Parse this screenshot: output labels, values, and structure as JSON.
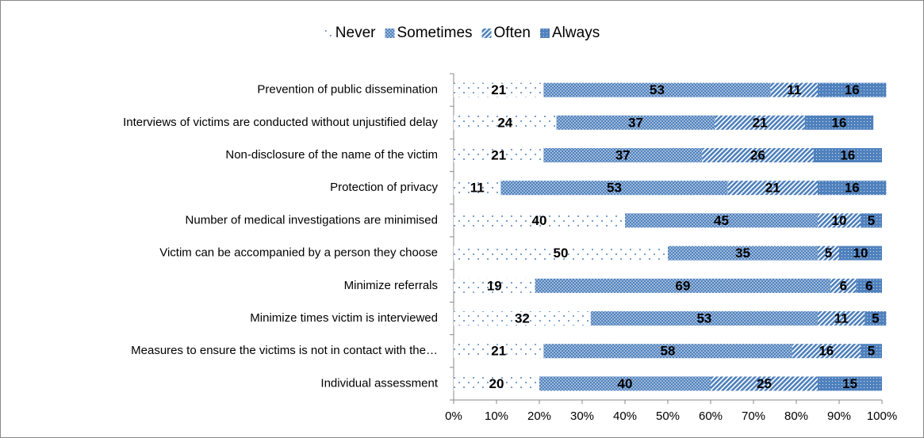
{
  "chart_data": {
    "type": "bar",
    "orientation": "horizontal",
    "stacked": true,
    "categories": [
      "Prevention of public dissemination",
      "Interviews of victims are conducted without unjustified delay",
      "Non-disclosure of the name of the victim",
      "Protection of privacy",
      "Number of medical investigations are minimised",
      "Victim can be accompanied by a person they choose",
      "Minimize referrals",
      "Minimize times victim is interviewed",
      "Measures to ensure the victims is not in contact with the…",
      "Individual assessment"
    ],
    "series": [
      {
        "name": "Never",
        "color": "#4f81bd",
        "pattern": "sparse-dots",
        "values": [
          21,
          24,
          21,
          11,
          40,
          50,
          19,
          32,
          21,
          20
        ]
      },
      {
        "name": "Sometimes",
        "color": "#4f81bd",
        "pattern": "dots",
        "values": [
          53,
          37,
          37,
          53,
          45,
          35,
          69,
          53,
          58,
          40
        ]
      },
      {
        "name": "Often",
        "color": "#4f81bd",
        "pattern": "stripes",
        "values": [
          11,
          21,
          26,
          21,
          10,
          5,
          6,
          11,
          16,
          25
        ]
      },
      {
        "name": "Always",
        "color": "#4f81bd",
        "pattern": "fine-dots",
        "values": [
          16,
          16,
          16,
          16,
          5,
          10,
          6,
          5,
          5,
          15
        ]
      }
    ],
    "xlim": [
      0,
      100
    ],
    "xticks": [
      {
        "value": 0,
        "label": "0%"
      },
      {
        "value": 10,
        "label": "10%"
      },
      {
        "value": 20,
        "label": "20%"
      },
      {
        "value": 30,
        "label": "30%"
      },
      {
        "value": 40,
        "label": "40%"
      },
      {
        "value": 50,
        "label": "50%"
      },
      {
        "value": 60,
        "label": "60%"
      },
      {
        "value": 70,
        "label": "70%"
      },
      {
        "value": 80,
        "label": "80%"
      },
      {
        "value": 90,
        "label": "90%"
      },
      {
        "value": 100,
        "label": "100%"
      }
    ],
    "legend": "top"
  }
}
